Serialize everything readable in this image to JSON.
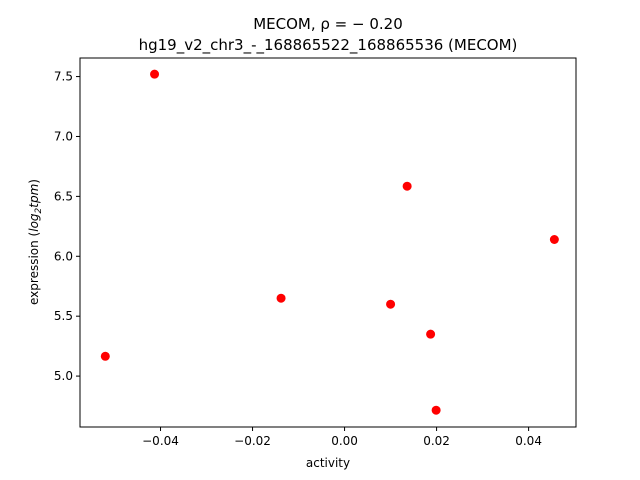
{
  "chart_data": {
    "type": "scatter",
    "title_line1": "MECOM, ρ = − 0.20",
    "title_line2": "hg19_v2_chr3_-_168865522_168865536 (MECOM)",
    "xlabel": "activity",
    "ylabel_prefix": "expression (",
    "ylabel_math": "log",
    "ylabel_sub": "2",
    "ylabel_math2": "tpm",
    "ylabel_suffix": ")",
    "xlim": [
      -0.0575,
      0.0503
    ],
    "ylim": [
      4.575,
      7.655
    ],
    "xticks": [
      {
        "value": -0.04,
        "label": "−0.04"
      },
      {
        "value": -0.02,
        "label": "−0.02"
      },
      {
        "value": 0.0,
        "label": "0.00"
      },
      {
        "value": 0.02,
        "label": "0.02"
      },
      {
        "value": 0.04,
        "label": "0.04"
      }
    ],
    "yticks": [
      {
        "value": 5.0,
        "label": "5.0"
      },
      {
        "value": 5.5,
        "label": "5.5"
      },
      {
        "value": 6.0,
        "label": "6.0"
      },
      {
        "value": 6.5,
        "label": "6.5"
      },
      {
        "value": 7.0,
        "label": "7.0"
      },
      {
        "value": 7.5,
        "label": "7.5"
      }
    ],
    "grid": false,
    "marker_color": "#ff0000",
    "points": [
      {
        "x": -0.0413,
        "y": 7.52
      },
      {
        "x": -0.052,
        "y": 5.165
      },
      {
        "x": -0.0138,
        "y": 5.65
      },
      {
        "x": 0.01,
        "y": 5.6
      },
      {
        "x": 0.0136,
        "y": 6.585
      },
      {
        "x": 0.0187,
        "y": 5.35
      },
      {
        "x": 0.0199,
        "y": 4.715
      },
      {
        "x": 0.0456,
        "y": 6.14
      }
    ]
  }
}
